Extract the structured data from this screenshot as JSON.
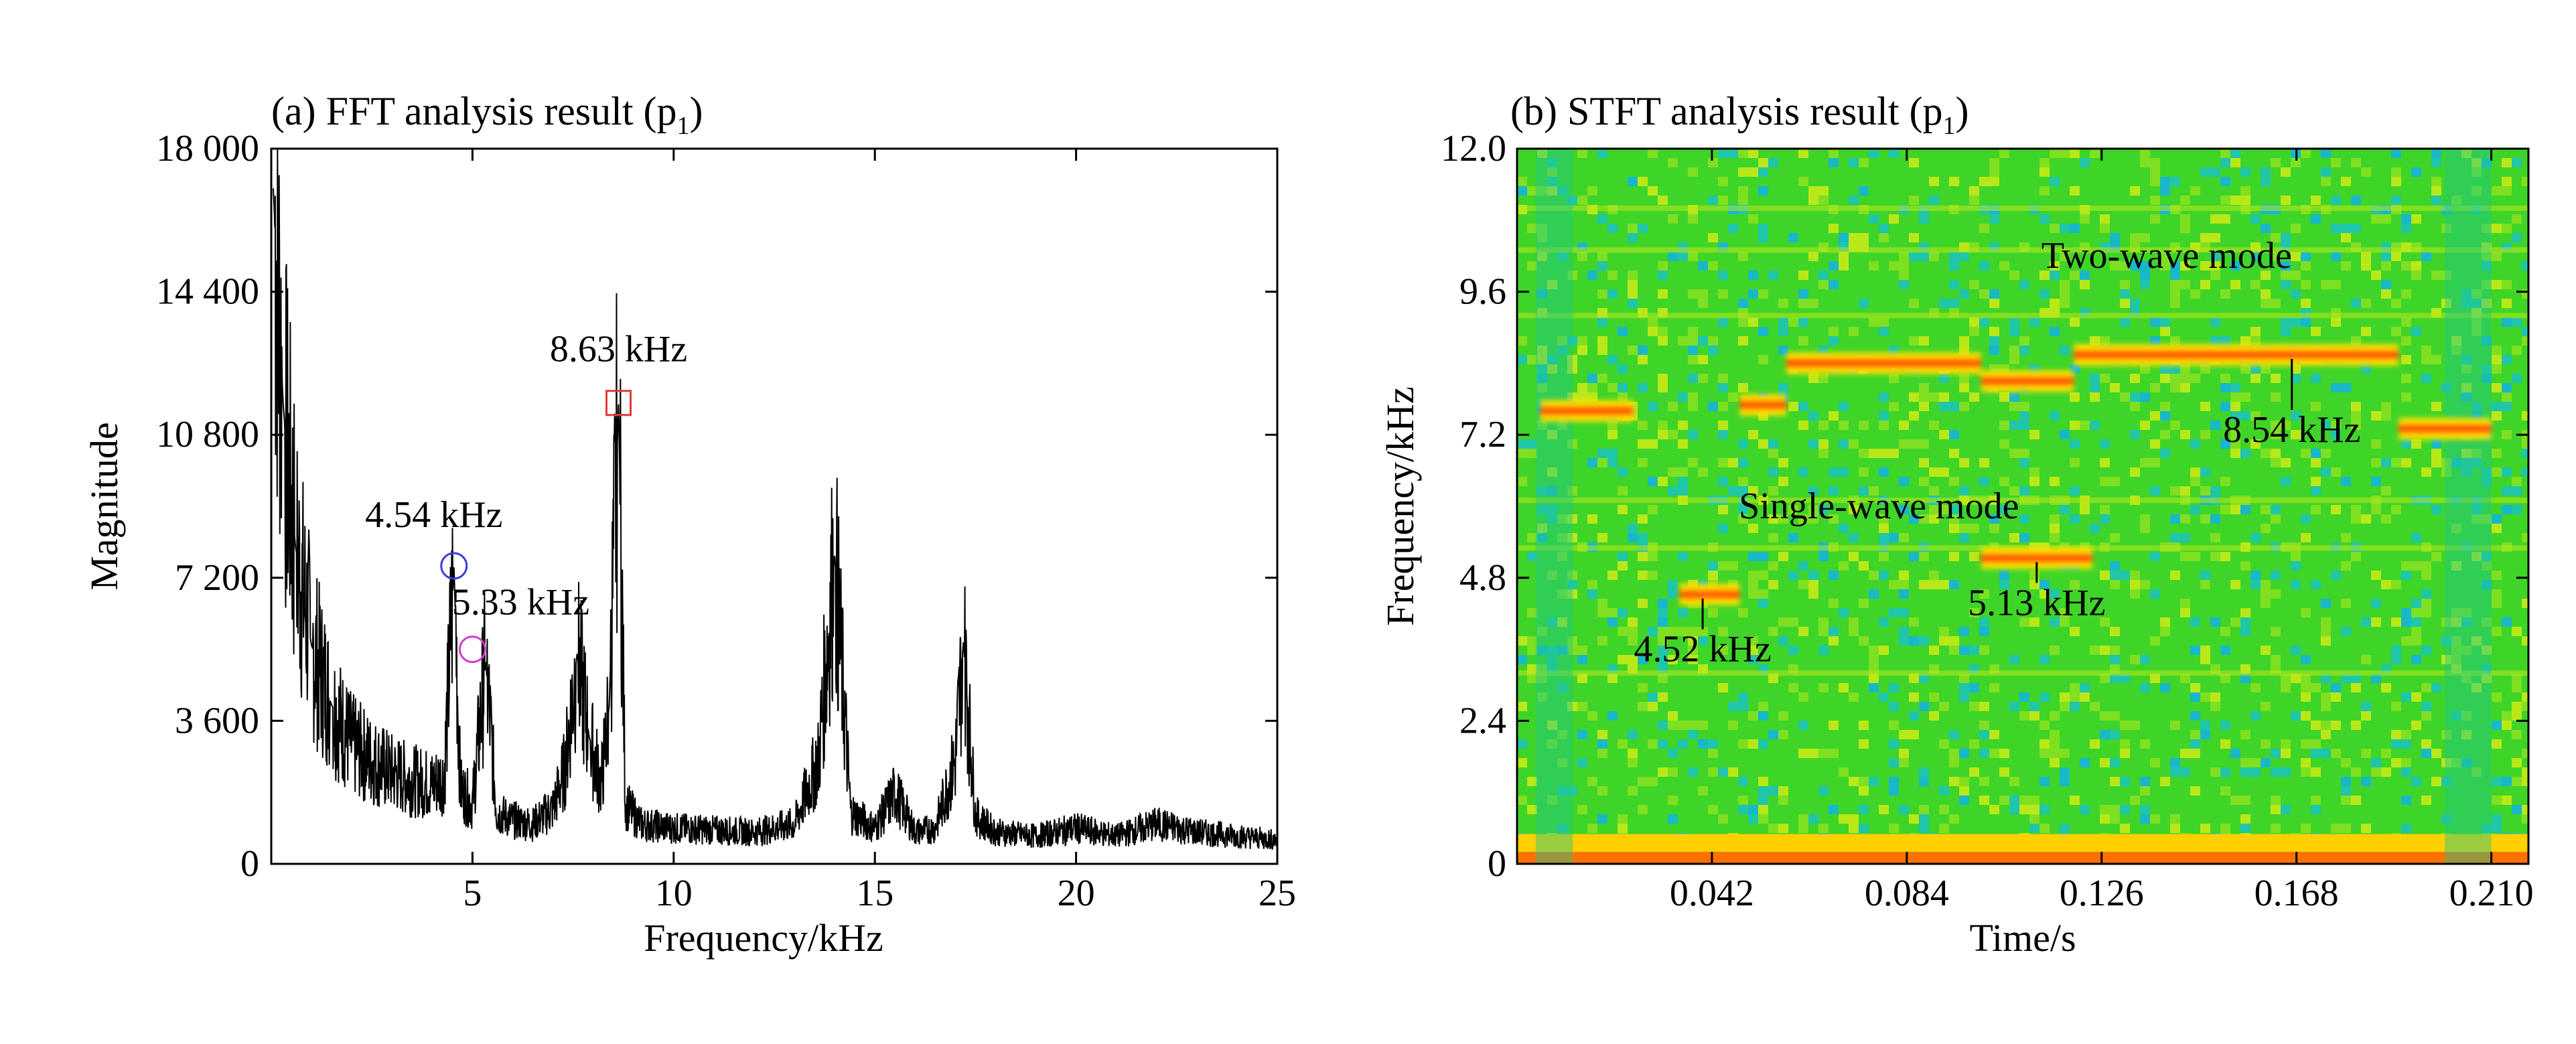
{
  "chart_data": [
    {
      "type": "line",
      "title": "(a) FFT analysis result (p",
      "title_subscript": "1",
      "title_suffix": ")",
      "xlabel": "Frequency/kHz",
      "ylabel": "Magnitude",
      "xlim": [
        0,
        25
      ],
      "ylim": [
        0,
        18000
      ],
      "xticks": [
        5,
        10,
        15,
        20,
        25
      ],
      "xtick_labels": [
        "5",
        "10",
        "15",
        "20",
        "25"
      ],
      "yticks": [
        0,
        3600,
        7200,
        10800,
        14400,
        18000
      ],
      "ytick_labels": [
        "0",
        "3 600",
        "7 200",
        "10 800",
        "14 400",
        "18 000"
      ],
      "series_color": "#000000",
      "series": [
        {
          "x": [
            0.05,
            0.3,
            0.6,
            1.0,
            1.5,
            2.0,
            2.5,
            3.0,
            3.5,
            4.0,
            4.3,
            4.54,
            4.7,
            5.0,
            5.33,
            5.6,
            6.0,
            6.5,
            7.0,
            7.3,
            7.6,
            7.9,
            8.2,
            8.4,
            8.63,
            8.8,
            9.2,
            10.0,
            11.0,
            12.0,
            13.0,
            13.6,
            14.0,
            14.4,
            15.0,
            15.5,
            16.0,
            16.5,
            17.0,
            17.2,
            17.5,
            18.0,
            19.0,
            20.0,
            21.0,
            22.0,
            23.0,
            24.0,
            25.0
          ],
          "values": [
            17000,
            11500,
            8000,
            5500,
            4000,
            3000,
            2600,
            2300,
            2100,
            2000,
            2200,
            7500,
            1900,
            1500,
            5100,
            1300,
            1100,
            1000,
            1400,
            2400,
            5300,
            3200,
            2000,
            4000,
            11600,
            1500,
            1000,
            900,
            850,
            800,
            1000,
            2600,
            7800,
            1300,
            900,
            1800,
            800,
            900,
            2600,
            5600,
            1200,
            800,
            700,
            900,
            700,
            1000,
            800,
            700,
            600
          ]
        }
      ],
      "annotations": [
        {
          "text": "8.63 kHz",
          "x": 8.63,
          "y": 11600,
          "marker": "square",
          "color": "#e03a3a"
        },
        {
          "text": "4.54 kHz",
          "x": 4.54,
          "y": 7500,
          "marker": "circle",
          "color": "#3b3bdb"
        },
        {
          "text": "5.33 kHz",
          "x": 5.0,
          "y": 5400,
          "marker": "circle",
          "color": "#d53ad5"
        }
      ]
    },
    {
      "type": "heatmap",
      "title": "(b) STFT analysis result (p",
      "title_subscript": "1",
      "title_suffix": ")",
      "xlabel": "Time/s",
      "ylabel": "Frequency/kHz",
      "xlim": [
        0,
        0.218
      ],
      "ylim": [
        0,
        12.0
      ],
      "xticks": [
        0.042,
        0.084,
        0.126,
        0.168,
        0.21
      ],
      "xtick_labels": [
        "0.042",
        "0.084",
        "0.126",
        "0.168",
        "0.210"
      ],
      "yticks": [
        0,
        2.4,
        4.8,
        7.2,
        9.6,
        12.0
      ],
      "ytick_labels": [
        "0",
        "2.4",
        "4.8",
        "7.2",
        "9.6",
        "12.0"
      ],
      "colors": {
        "low": "#1ec8a0",
        "mid": "#32d22a",
        "high": "#ffe000",
        "peak": "#ff5a00"
      },
      "ridges": [
        {
          "t": [
            0.005,
            0.025
          ],
          "f": [
            7.6,
            7.6
          ]
        },
        {
          "t": [
            0.035,
            0.048
          ],
          "f": [
            4.52,
            4.52
          ]
        },
        {
          "t": [
            0.048,
            0.058
          ],
          "f": [
            7.7,
            7.7
          ]
        },
        {
          "t": [
            0.058,
            0.1
          ],
          "f": [
            8.4,
            8.4
          ]
        },
        {
          "t": [
            0.1,
            0.12
          ],
          "f": [
            8.1,
            8.1
          ]
        },
        {
          "t": [
            0.12,
            0.19
          ],
          "f": [
            8.54,
            8.54
          ]
        },
        {
          "t": [
            0.19,
            0.21
          ],
          "f": [
            7.3,
            7.3
          ]
        },
        {
          "t": [
            0.1,
            0.124
          ],
          "f": [
            5.13,
            5.13
          ]
        }
      ],
      "annotations": [
        {
          "text": "Two-wave mode",
          "x": 0.14,
          "y": 10.0
        },
        {
          "text": "Single-wave mode",
          "x": 0.078,
          "y": 5.8
        },
        {
          "text": "8.54 kHz",
          "x": 0.167,
          "y": 8.54
        },
        {
          "text": "4.52 kHz",
          "x": 0.04,
          "y": 4.52
        },
        {
          "text": "5.13 kHz",
          "x": 0.112,
          "y": 5.13
        }
      ]
    }
  ]
}
